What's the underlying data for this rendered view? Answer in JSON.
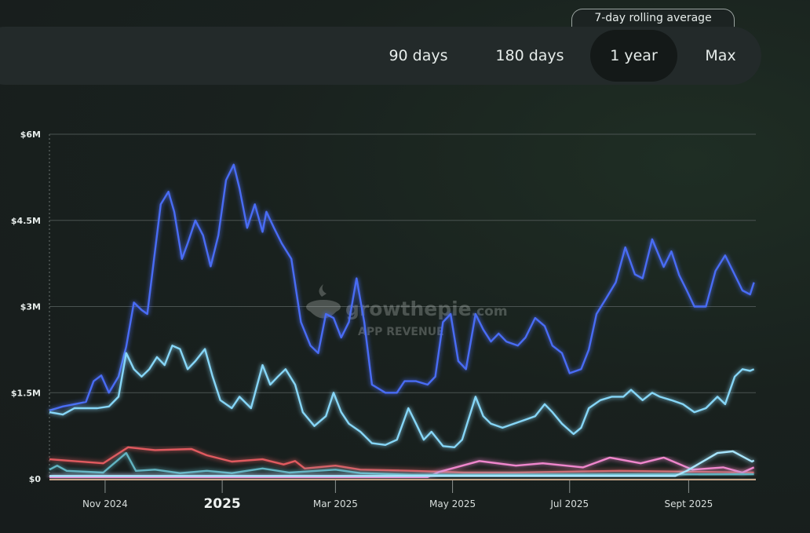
{
  "toggle": {
    "rolling_label": "7-day rolling average",
    "options": [
      "90 days",
      "180 days",
      "1 year",
      "Max"
    ],
    "selected": "1 year"
  },
  "watermark": {
    "brand": "growthepie",
    "domain": ".com",
    "subtitle": "APP REVENUE"
  },
  "chart_data": {
    "type": "line",
    "title": "App Revenue",
    "xlabel": "",
    "ylabel": "",
    "x_unit": "days since 2024-10-03",
    "xlim": [
      0,
      368
    ],
    "ylim": [
      0,
      6
    ],
    "y_unit": "USD millions",
    "grid": true,
    "y_ticks": [
      {
        "v": 0,
        "label": "$0"
      },
      {
        "v": 1.5,
        "label": "$1.5M"
      },
      {
        "v": 3,
        "label": "$3M"
      },
      {
        "v": 4.5,
        "label": "$4.5M"
      },
      {
        "v": 6,
        "label": "$6M"
      }
    ],
    "x_ticks": [
      {
        "v": 29,
        "label": "Nov 2024"
      },
      {
        "v": 90,
        "label": "2025",
        "major": true
      },
      {
        "v": 149,
        "label": "Mar 2025"
      },
      {
        "v": 210,
        "label": "May 2025"
      },
      {
        "v": 271,
        "label": "Jul 2025"
      },
      {
        "v": 333,
        "label": "Sept 2025"
      }
    ],
    "series": [
      {
        "name": "series-blue",
        "color": "#4a6cf5",
        "points": [
          [
            0,
            1.19
          ],
          [
            7,
            1.26
          ],
          [
            13,
            1.3
          ],
          [
            19,
            1.34
          ],
          [
            23,
            1.7
          ],
          [
            27,
            1.8
          ],
          [
            31,
            1.5
          ],
          [
            36,
            1.78
          ],
          [
            40,
            2.3
          ],
          [
            44,
            3.07
          ],
          [
            48,
            2.94
          ],
          [
            51,
            2.87
          ],
          [
            54,
            3.7
          ],
          [
            58,
            4.78
          ],
          [
            62,
            5.0
          ],
          [
            65,
            4.65
          ],
          [
            69,
            3.83
          ],
          [
            72,
            4.1
          ],
          [
            76,
            4.5
          ],
          [
            80,
            4.24
          ],
          [
            84,
            3.7
          ],
          [
            88,
            4.24
          ],
          [
            92,
            5.2
          ],
          [
            96,
            5.47
          ],
          [
            99,
            5.06
          ],
          [
            103,
            4.37
          ],
          [
            107,
            4.78
          ],
          [
            111,
            4.3
          ],
          [
            113,
            4.65
          ],
          [
            117,
            4.37
          ],
          [
            121,
            4.1
          ],
          [
            126,
            3.83
          ],
          [
            131,
            2.73
          ],
          [
            136,
            2.32
          ],
          [
            140,
            2.19
          ],
          [
            144,
            2.87
          ],
          [
            148,
            2.8
          ],
          [
            152,
            2.46
          ],
          [
            156,
            2.73
          ],
          [
            160,
            3.49
          ],
          [
            164,
            2.73
          ],
          [
            168,
            1.64
          ],
          [
            175,
            1.5
          ],
          [
            181,
            1.5
          ],
          [
            185,
            1.7
          ],
          [
            191,
            1.7
          ],
          [
            197,
            1.64
          ],
          [
            201,
            1.78
          ],
          [
            205,
            2.73
          ],
          [
            209,
            2.87
          ],
          [
            213,
            2.05
          ],
          [
            217,
            1.91
          ],
          [
            222,
            2.87
          ],
          [
            226,
            2.6
          ],
          [
            230,
            2.39
          ],
          [
            234,
            2.53
          ],
          [
            238,
            2.39
          ],
          [
            244,
            2.32
          ],
          [
            248,
            2.46
          ],
          [
            253,
            2.8
          ],
          [
            258,
            2.66
          ],
          [
            262,
            2.32
          ],
          [
            267,
            2.19
          ],
          [
            271,
            1.84
          ],
          [
            277,
            1.91
          ],
          [
            281,
            2.25
          ],
          [
            285,
            2.87
          ],
          [
            290,
            3.14
          ],
          [
            295,
            3.42
          ],
          [
            300,
            4.03
          ],
          [
            305,
            3.56
          ],
          [
            309,
            3.49
          ],
          [
            314,
            4.17
          ],
          [
            320,
            3.69
          ],
          [
            324,
            3.96
          ],
          [
            328,
            3.55
          ],
          [
            332,
            3.28
          ],
          [
            336,
            3.0
          ],
          [
            342,
            3.0
          ],
          [
            347,
            3.62
          ],
          [
            352,
            3.89
          ],
          [
            356,
            3.62
          ],
          [
            361,
            3.28
          ],
          [
            365,
            3.21
          ],
          [
            367,
            3.42
          ]
        ]
      },
      {
        "name": "series-cyan",
        "color": "#86d6f7",
        "points": [
          [
            0,
            1.16
          ],
          [
            7,
            1.12
          ],
          [
            13,
            1.23
          ],
          [
            19,
            1.23
          ],
          [
            25,
            1.23
          ],
          [
            31,
            1.26
          ],
          [
            36,
            1.43
          ],
          [
            40,
            2.19
          ],
          [
            44,
            1.91
          ],
          [
            48,
            1.78
          ],
          [
            52,
            1.91
          ],
          [
            56,
            2.12
          ],
          [
            60,
            1.98
          ],
          [
            64,
            2.32
          ],
          [
            68,
            2.26
          ],
          [
            72,
            1.91
          ],
          [
            76,
            2.05
          ],
          [
            81,
            2.26
          ],
          [
            85,
            1.78
          ],
          [
            89,
            1.37
          ],
          [
            95,
            1.23
          ],
          [
            99,
            1.43
          ],
          [
            105,
            1.23
          ],
          [
            111,
            1.98
          ],
          [
            115,
            1.64
          ],
          [
            119,
            1.78
          ],
          [
            123,
            1.91
          ],
          [
            128,
            1.64
          ],
          [
            132,
            1.16
          ],
          [
            138,
            0.92
          ],
          [
            144,
            1.09
          ],
          [
            148,
            1.5
          ],
          [
            152,
            1.16
          ],
          [
            156,
            0.96
          ],
          [
            162,
            0.82
          ],
          [
            168,
            0.62
          ],
          [
            175,
            0.59
          ],
          [
            181,
            0.68
          ],
          [
            187,
            1.23
          ],
          [
            191,
            0.96
          ],
          [
            195,
            0.68
          ],
          [
            199,
            0.82
          ],
          [
            205,
            0.57
          ],
          [
            211,
            0.55
          ],
          [
            215,
            0.68
          ],
          [
            222,
            1.43
          ],
          [
            226,
            1.09
          ],
          [
            230,
            0.96
          ],
          [
            236,
            0.89
          ],
          [
            242,
            0.96
          ],
          [
            248,
            1.03
          ],
          [
            253,
            1.09
          ],
          [
            258,
            1.3
          ],
          [
            262,
            1.16
          ],
          [
            267,
            0.96
          ],
          [
            273,
            0.78
          ],
          [
            277,
            0.89
          ],
          [
            281,
            1.23
          ],
          [
            287,
            1.37
          ],
          [
            293,
            1.43
          ],
          [
            299,
            1.43
          ],
          [
            303,
            1.55
          ],
          [
            309,
            1.37
          ],
          [
            314,
            1.5
          ],
          [
            318,
            1.43
          ],
          [
            324,
            1.37
          ],
          [
            330,
            1.3
          ],
          [
            336,
            1.16
          ],
          [
            342,
            1.23
          ],
          [
            348,
            1.43
          ],
          [
            352,
            1.3
          ],
          [
            357,
            1.78
          ],
          [
            361,
            1.91
          ],
          [
            365,
            1.88
          ],
          [
            367,
            1.91
          ]
        ]
      },
      {
        "name": "series-red",
        "color": "#e05a5e",
        "points": [
          [
            0,
            0.34
          ],
          [
            28,
            0.27
          ],
          [
            41,
            0.55
          ],
          [
            55,
            0.5
          ],
          [
            74,
            0.52
          ],
          [
            82,
            0.41
          ],
          [
            95,
            0.3
          ],
          [
            111,
            0.34
          ],
          [
            122,
            0.25
          ],
          [
            128,
            0.31
          ],
          [
            133,
            0.18
          ],
          [
            149,
            0.23
          ],
          [
            162,
            0.16
          ],
          [
            189,
            0.14
          ],
          [
            216,
            0.11
          ],
          [
            243,
            0.11
          ],
          [
            297,
            0.14
          ],
          [
            367,
            0.11
          ]
        ]
      },
      {
        "name": "series-pink",
        "color": "#ef86cc",
        "points": [
          [
            0,
            0.03
          ],
          [
            197,
            0.03
          ],
          [
            203,
            0.12
          ],
          [
            224,
            0.31
          ],
          [
            243,
            0.23
          ],
          [
            257,
            0.27
          ],
          [
            278,
            0.2
          ],
          [
            292,
            0.37
          ],
          [
            308,
            0.27
          ],
          [
            320,
            0.37
          ],
          [
            335,
            0.16
          ],
          [
            351,
            0.2
          ],
          [
            361,
            0.11
          ],
          [
            367,
            0.2
          ]
        ]
      },
      {
        "name": "series-teal",
        "color": "#62b4c2",
        "points": [
          [
            0,
            0.16
          ],
          [
            4,
            0.23
          ],
          [
            9,
            0.14
          ],
          [
            28,
            0.11
          ],
          [
            40,
            0.45
          ],
          [
            45,
            0.14
          ],
          [
            55,
            0.16
          ],
          [
            68,
            0.1
          ],
          [
            82,
            0.14
          ],
          [
            95,
            0.1
          ],
          [
            111,
            0.18
          ],
          [
            125,
            0.11
          ],
          [
            149,
            0.16
          ],
          [
            162,
            0.1
          ],
          [
            189,
            0.07
          ],
          [
            367,
            0.08
          ]
        ]
      },
      {
        "name": "series-light",
        "color": "#a8e6ff",
        "points": [
          [
            0,
            0.05
          ],
          [
            326,
            0.05
          ],
          [
            332,
            0.14
          ],
          [
            348,
            0.45
          ],
          [
            356,
            0.48
          ],
          [
            366,
            0.3
          ],
          [
            367,
            0.32
          ]
        ]
      }
    ]
  }
}
